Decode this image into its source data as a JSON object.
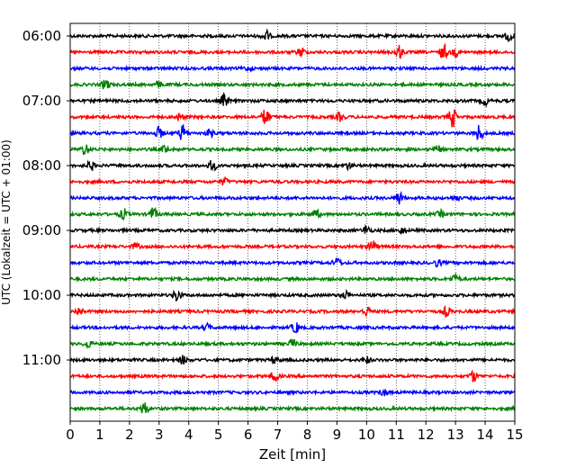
{
  "chart_data": {
    "type": "line",
    "title": "",
    "xlabel": "Zeit  [min]",
    "ylabel": "UTC (Lokalzeit = UTC + 01:00)",
    "xlim": [
      0,
      15
    ],
    "x_ticks": [
      0,
      1,
      2,
      3,
      4,
      5,
      6,
      7,
      8,
      9,
      10,
      11,
      12,
      13,
      14,
      15
    ],
    "grid_x": true,
    "y_tick_labels": [
      "06:00",
      "07:00",
      "08:00",
      "09:00",
      "10:00",
      "11:00"
    ],
    "trace_interval_minutes": 15,
    "colors": [
      "#000000",
      "#ff0000",
      "#0000ff",
      "#008000"
    ],
    "traces": [
      {
        "start": "06:00",
        "color": "#000000",
        "events": [
          {
            "t": 6.6,
            "a": 1.2
          },
          {
            "t": 14.8,
            "a": 1.0
          }
        ]
      },
      {
        "start": "06:15",
        "color": "#ff0000",
        "events": [
          {
            "t": 7.8,
            "a": 1.0
          },
          {
            "t": 11.1,
            "a": 1.4
          },
          {
            "t": 12.6,
            "a": 1.6
          },
          {
            "t": 13.0,
            "a": 0.8
          }
        ]
      },
      {
        "start": "06:30",
        "color": "#0000ff",
        "events": [
          {
            "t": 6.0,
            "a": 0.4
          }
        ]
      },
      {
        "start": "06:45",
        "color": "#008000",
        "events": [
          {
            "t": 1.2,
            "a": 1.2
          },
          {
            "t": 3.0,
            "a": 0.6
          }
        ]
      },
      {
        "start": "07:00",
        "color": "#000000",
        "events": [
          {
            "t": 5.2,
            "a": 1.4
          },
          {
            "t": 14.0,
            "a": 0.9
          }
        ]
      },
      {
        "start": "07:15",
        "color": "#ff0000",
        "events": [
          {
            "t": 3.7,
            "a": 0.8
          },
          {
            "t": 6.6,
            "a": 2.0
          },
          {
            "t": 9.1,
            "a": 0.9
          },
          {
            "t": 12.9,
            "a": 2.2
          }
        ]
      },
      {
        "start": "07:30",
        "color": "#0000ff",
        "events": [
          {
            "t": 3.0,
            "a": 1.2
          },
          {
            "t": 3.8,
            "a": 1.8
          },
          {
            "t": 4.7,
            "a": 0.8
          },
          {
            "t": 13.8,
            "a": 1.8
          }
        ]
      },
      {
        "start": "07:45",
        "color": "#008000",
        "events": [
          {
            "t": 0.5,
            "a": 1.2
          },
          {
            "t": 3.2,
            "a": 0.8
          },
          {
            "t": 12.4,
            "a": 0.7
          }
        ]
      },
      {
        "start": "08:00",
        "color": "#000000",
        "events": [
          {
            "t": 0.7,
            "a": 1.0
          },
          {
            "t": 4.8,
            "a": 1.2
          },
          {
            "t": 9.4,
            "a": 0.7
          }
        ]
      },
      {
        "start": "08:15",
        "color": "#ff0000",
        "events": [
          {
            "t": 5.2,
            "a": 0.7
          }
        ]
      },
      {
        "start": "08:30",
        "color": "#0000ff",
        "events": [
          {
            "t": 11.1,
            "a": 1.4
          },
          {
            "t": 13.0,
            "a": 0.6
          }
        ]
      },
      {
        "start": "08:45",
        "color": "#008000",
        "events": [
          {
            "t": 1.8,
            "a": 1.1
          },
          {
            "t": 2.8,
            "a": 1.4
          },
          {
            "t": 8.3,
            "a": 0.8
          },
          {
            "t": 12.5,
            "a": 0.7
          }
        ]
      },
      {
        "start": "09:00",
        "color": "#000000",
        "events": [
          {
            "t": 10.0,
            "a": 1.0
          },
          {
            "t": 11.2,
            "a": 0.7
          }
        ]
      },
      {
        "start": "09:15",
        "color": "#ff0000",
        "events": [
          {
            "t": 2.2,
            "a": 0.6
          },
          {
            "t": 10.2,
            "a": 1.4
          }
        ]
      },
      {
        "start": "09:30",
        "color": "#0000ff",
        "events": [
          {
            "t": 9.0,
            "a": 1.0
          },
          {
            "t": 12.4,
            "a": 0.7
          }
        ]
      },
      {
        "start": "09:45",
        "color": "#008000",
        "events": [
          {
            "t": 13.0,
            "a": 1.0
          }
        ]
      },
      {
        "start": "10:00",
        "color": "#000000",
        "events": [
          {
            "t": 3.6,
            "a": 1.3
          },
          {
            "t": 9.3,
            "a": 0.8
          }
        ]
      },
      {
        "start": "10:15",
        "color": "#ff0000",
        "events": [
          {
            "t": 0.3,
            "a": 0.8
          },
          {
            "t": 10.0,
            "a": 1.0
          },
          {
            "t": 12.7,
            "a": 1.1
          }
        ]
      },
      {
        "start": "10:30",
        "color": "#0000ff",
        "events": [
          {
            "t": 4.6,
            "a": 0.8
          },
          {
            "t": 7.6,
            "a": 1.2
          }
        ]
      },
      {
        "start": "10:45",
        "color": "#008000",
        "events": [
          {
            "t": 0.6,
            "a": 0.8
          },
          {
            "t": 7.5,
            "a": 1.0
          }
        ]
      },
      {
        "start": "11:00",
        "color": "#000000",
        "events": [
          {
            "t": 3.8,
            "a": 0.9
          },
          {
            "t": 6.9,
            "a": 0.8
          },
          {
            "t": 10.0,
            "a": 0.7
          }
        ]
      },
      {
        "start": "11:15",
        "color": "#ff0000",
        "events": [
          {
            "t": 6.9,
            "a": 1.2
          },
          {
            "t": 13.6,
            "a": 1.2
          }
        ]
      },
      {
        "start": "11:30",
        "color": "#0000ff",
        "events": [
          {
            "t": 10.6,
            "a": 0.7
          }
        ]
      },
      {
        "start": "11:45",
        "color": "#008000",
        "events": [
          {
            "t": 2.5,
            "a": 1.4
          }
        ]
      }
    ]
  }
}
